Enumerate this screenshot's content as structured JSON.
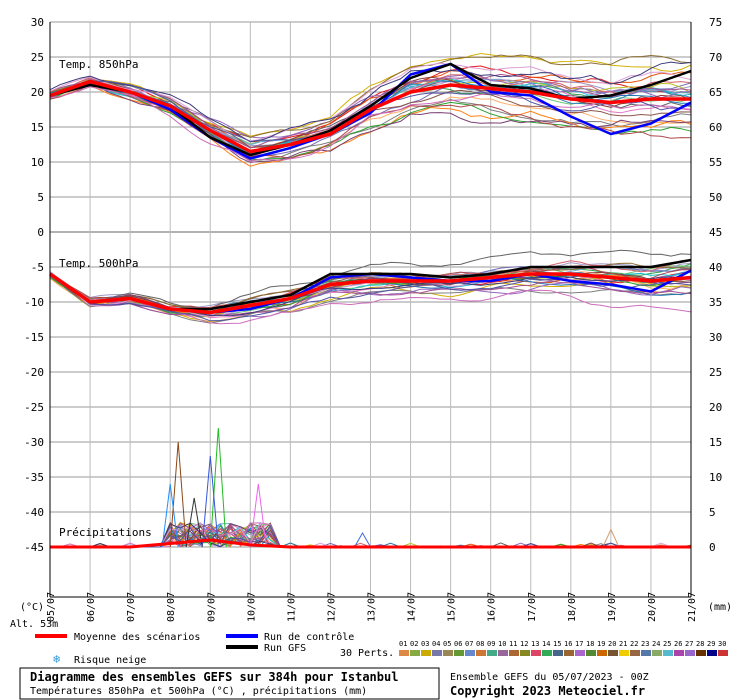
{
  "chart_data": {
    "type": "line",
    "x_dates": [
      "05/07",
      "06/07",
      "07/07",
      "08/07",
      "09/07",
      "10/07",
      "11/07",
      "12/07",
      "13/07",
      "14/07",
      "15/07",
      "16/07",
      "17/07",
      "18/07",
      "19/07",
      "20/07",
      "21/07"
    ],
    "left_unit": "(°C)",
    "right_unit": "(mm)",
    "left_axis": {
      "ticks": [
        30,
        25,
        20,
        15,
        10,
        5,
        0,
        -5,
        -10,
        -15,
        -20,
        -25,
        -30,
        -35,
        -40,
        -45
      ],
      "range": [
        -45,
        30
      ]
    },
    "right_axis": {
      "ticks": [
        75,
        70,
        65,
        60,
        55,
        50,
        45,
        40,
        35,
        30,
        25,
        20,
        15,
        10,
        5,
        0
      ]
    },
    "panels": {
      "t850": {
        "label": "Temp. 850hPa",
        "mean": [
          19.5,
          21.5,
          20.0,
          18.0,
          14.5,
          11.5,
          12.5,
          14.0,
          17.5,
          20.0,
          21.0,
          20.5,
          20.0,
          19.0,
          18.5,
          19.0,
          19.0
        ],
        "control": [
          19.5,
          21.5,
          20.0,
          17.5,
          13.5,
          10.5,
          12.0,
          14.0,
          17.0,
          22.5,
          24.0,
          20.0,
          19.5,
          16.5,
          14.0,
          15.5,
          18.5
        ],
        "gfs": [
          19.5,
          21.0,
          20.0,
          18.0,
          13.5,
          11.0,
          12.5,
          14.5,
          18.0,
          22.0,
          24.0,
          21.0,
          20.5,
          19.0,
          19.5,
          21.0,
          23.0
        ],
        "spread": [
          1.0,
          1.5,
          2.0,
          2.5,
          3.0,
          3.5,
          4.0,
          4.5,
          5.0,
          5.5,
          6.0,
          6.5,
          7.0,
          7.5,
          8.0,
          8.5,
          9.0
        ]
      },
      "t500": {
        "label": "Temp. 500hPa",
        "mean": [
          -6.0,
          -10.0,
          -9.5,
          -11.0,
          -11.5,
          -10.5,
          -9.5,
          -7.5,
          -7.0,
          -7.0,
          -7.0,
          -6.5,
          -6.0,
          -6.0,
          -6.5,
          -7.0,
          -6.5
        ],
        "control": [
          -6.0,
          -10.0,
          -9.5,
          -11.0,
          -11.5,
          -11.0,
          -9.5,
          -6.5,
          -6.0,
          -6.5,
          -7.0,
          -7.0,
          -6.0,
          -7.0,
          -7.5,
          -8.5,
          -5.5
        ],
        "gfs": [
          -6.0,
          -10.0,
          -9.5,
          -11.0,
          -11.0,
          -10.0,
          -9.0,
          -6.0,
          -6.0,
          -6.0,
          -6.5,
          -6.0,
          -5.0,
          -5.0,
          -5.0,
          -5.0,
          -4.0
        ],
        "spread": [
          0.5,
          0.8,
          1.0,
          1.5,
          2.0,
          2.5,
          3.0,
          3.0,
          3.0,
          3.0,
          3.0,
          3.0,
          3.5,
          3.5,
          4.0,
          4.0,
          4.5
        ]
      },
      "precip": {
        "label": "Précipitations",
        "mean_mm": [
          0,
          0,
          0,
          0.5,
          1.0,
          0.3,
          0,
          0,
          0,
          0,
          0,
          0,
          0,
          0,
          0,
          0,
          0
        ],
        "peaks": [
          {
            "x": 3.2,
            "mm": 15.0,
            "color": "#8b4513"
          },
          {
            "x": 4.2,
            "mm": 17.0,
            "color": "#22bb22"
          },
          {
            "x": 4.0,
            "mm": 13.0,
            "color": "#3355dd"
          },
          {
            "x": 5.2,
            "mm": 9.0,
            "color": "#ee66ee"
          },
          {
            "x": 3.0,
            "mm": 9.0,
            "color": "#1e90ff"
          },
          {
            "x": 3.6,
            "mm": 7.0,
            "color": "#333333"
          },
          {
            "x": 7.8,
            "mm": 2.0,
            "color": "#4169e1"
          },
          {
            "x": 14.0,
            "mm": 2.5,
            "color": "#d2a070"
          }
        ]
      }
    },
    "series_colors": [
      "#e41a1c",
      "#e6550d",
      "#fdae6b",
      "#d4b106",
      "#31a354",
      "#74c476",
      "#3182bd",
      "#6baed6",
      "#756bb1",
      "#9e9ac8",
      "#636363",
      "#8c564b",
      "#e377c2",
      "#17becf",
      "#bcbd22",
      "#7f7f7f",
      "#1f77b4",
      "#ff7f0e",
      "#2ca02c",
      "#9467bd",
      "#8c6d31",
      "#843c39",
      "#ad494a",
      "#d6616b",
      "#7b4173",
      "#a55194",
      "#ce6dbd",
      "#de9ed6",
      "#393b79",
      "#5254a3"
    ],
    "legend": {
      "mean": "Moyenne des scénarios",
      "control": "Run de contrôle",
      "gfs": "Run GFS",
      "snow": "Risque neige",
      "perts": "30 Perts.",
      "mean_color": "#ff0000",
      "control_color": "#0000ff",
      "gfs_color": "#000000"
    },
    "pert_numbers": [
      "01",
      "02",
      "03",
      "04",
      "05",
      "06",
      "07",
      "08",
      "09",
      "10",
      "11",
      "12",
      "13",
      "14",
      "15",
      "16",
      "17",
      "18",
      "19",
      "20",
      "21",
      "22",
      "23",
      "24",
      "25",
      "26",
      "27",
      "28",
      "29",
      "30"
    ],
    "pert_colors": [
      "#dd8844",
      "#88aa44",
      "#ccaa00",
      "#7777aa",
      "#998855",
      "#669933",
      "#6688cc",
      "#cc7733",
      "#44aa88",
      "#996699",
      "#aa6633",
      "#888822",
      "#dd4466",
      "#33aa55",
      "#446688",
      "#996633",
      "#aa66cc",
      "#558833",
      "#cc6600",
      "#775533",
      "#eecc00",
      "#996644",
      "#5577aa",
      "#88aa66",
      "#55bbcc",
      "#aa44aa",
      "#9966cc",
      "#663300",
      "#000088",
      "#cc3333"
    ]
  },
  "altitude": "Alt. 53m",
  "footer": {
    "title": "Diagramme des ensembles GEFS sur 384h pour Istanbul",
    "subtitle": "Températures 850hPa et 500hPa (°C) , précipitations (mm)",
    "ensemble_info": "Ensemble GEFS du 05/07/2023 - 00Z",
    "copyright": "Copyright 2023 Meteociel.fr"
  }
}
